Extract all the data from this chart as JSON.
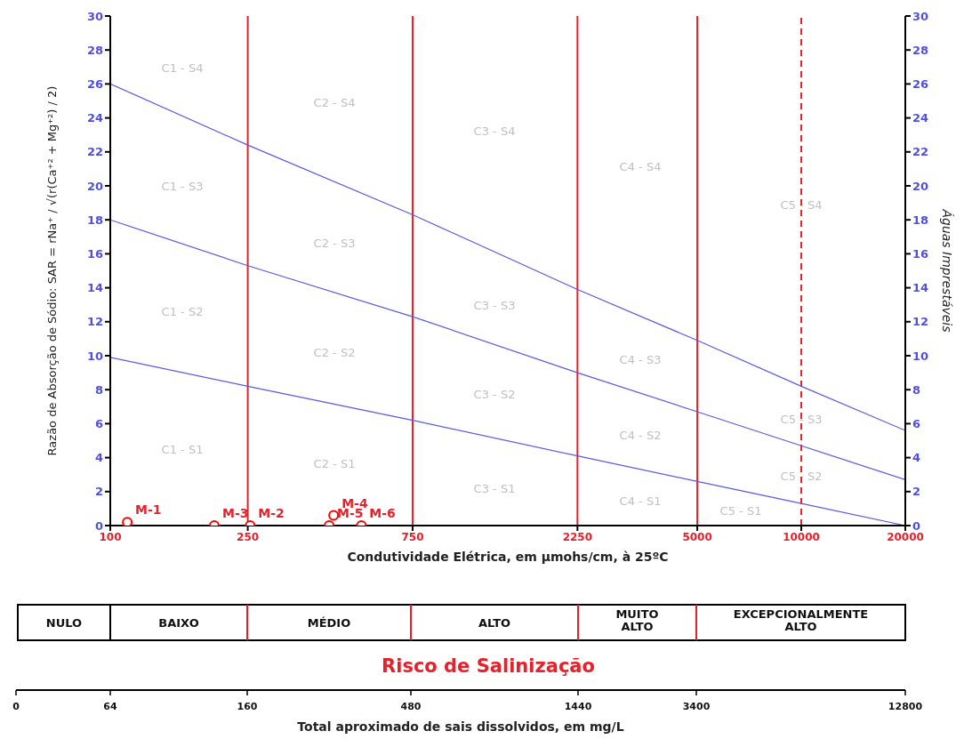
{
  "chart_data": {
    "type": "line",
    "xlabel": "Condutividade Elétrica, em µmohs/cm, à 25ºC",
    "ylabel": "Razão de Absorção de Sódio:   SAR   =   rNa⁺ / √(r(Ca⁺² + Mg⁺²) / 2)",
    "y2label": "Águas Imprestáveis",
    "log": "x",
    "xlim": [
      100,
      20000
    ],
    "xticks": [
      100,
      250,
      750,
      2250,
      5000,
      10000,
      20000
    ],
    "ylim": [
      0,
      30
    ],
    "yticks": [
      0,
      2,
      4,
      6,
      8,
      10,
      12,
      14,
      16,
      18,
      20,
      22,
      24,
      26,
      28,
      30
    ],
    "y2lim": [
      0,
      30
    ],
    "y2ticks": [
      0,
      2,
      4,
      6,
      8,
      10,
      12,
      14,
      16,
      18,
      20,
      22,
      24,
      26,
      28,
      30
    ],
    "series": [
      {
        "color": "#5a5ae6",
        "x": [
          100,
          250,
          750,
          2250,
          5000,
          10000,
          20000
        ],
        "values": [
          26,
          22.4,
          18.3,
          13.9,
          10.9,
          8.2,
          5.6
        ]
      },
      {
        "color": "#5a5ae6",
        "x": [
          100,
          250,
          750,
          2250,
          5000,
          10000,
          20000
        ],
        "values": [
          18,
          15.3,
          12.3,
          9.0,
          6.7,
          4.7,
          2.7
        ]
      },
      {
        "color": "#5a5ae6",
        "x": [
          100,
          250,
          750,
          2250,
          5000,
          10000,
          20000
        ],
        "values": [
          9.9,
          8.2,
          6.2,
          4.1,
          2.6,
          1.3,
          0
        ]
      },
      {
        "type": "scatter",
        "color": "#ff0000",
        "marker": "circle",
        "x": [
          112,
          254,
          200,
          443,
          430,
          533
        ],
        "values": [
          0.2,
          0,
          0,
          0.6,
          0,
          0
        ]
      }
    ],
    "ref_lines": [
      {
        "axis": "x",
        "value": 250,
        "color": "#e8202a",
        "line_style": "solid"
      },
      {
        "axis": "x",
        "value": 750,
        "color": "#e8202a",
        "line_style": "solid"
      },
      {
        "axis": "x",
        "value": 2250,
        "color": "#e8202a",
        "line_style": "solid"
      },
      {
        "axis": "x",
        "value": 5000,
        "color": "#e8202a",
        "line_style": "solid"
      },
      {
        "axis": "x",
        "value": 10000,
        "color": "#e8202a",
        "line_style": "dashed"
      }
    ],
    "annotations": [
      "C1 - S4",
      "C1 - S3",
      "C1 - S2",
      "C1 - S1",
      "C2 - S4",
      "C2 - S3",
      "C2 - S2",
      "C2 - S1",
      "C3 - S4",
      "C3 - S3",
      "C3 - S2",
      "C3 - S1",
      "C4 - S4",
      "C4 - S3",
      "C4 - S2",
      "C4 - S1",
      "C5 - S4",
      "C5 - S3",
      "C5 - S2",
      "C5 - S1",
      {
        "text": "M-1",
        "x": 112,
        "y": 0.2
      },
      {
        "text": "M-2",
        "x": 254,
        "y": 0
      },
      {
        "text": "M-3",
        "x": 200,
        "y": 0
      },
      {
        "text": "M-4",
        "x": 443,
        "y": 0.6
      },
      {
        "text": "M-5",
        "x": 430,
        "y": 0
      },
      {
        "text": "M-6",
        "x": 533,
        "y": 0
      },
      "NULO",
      "BAIXO",
      "MÉDIO",
      "ALTO",
      "MUITO ALTO",
      "EXCEPCIONALMENTE ALTO",
      "Risco de Salinização",
      "0",
      "64",
      "160",
      "480",
      "1440",
      "3400",
      "12800",
      "Total aproximado de sais dissolvidos, em mg/L"
    ]
  }
}
